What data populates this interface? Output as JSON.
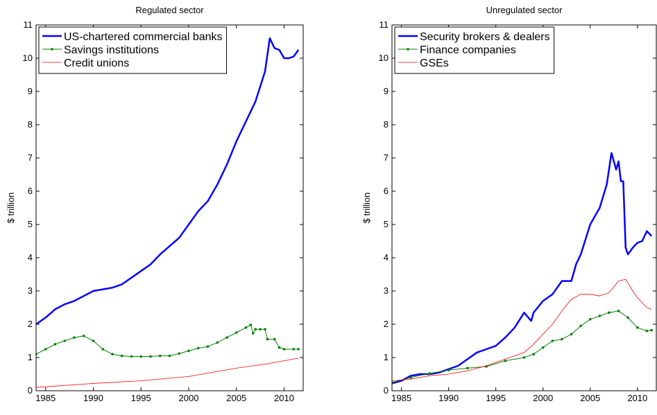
{
  "chart_data": [
    {
      "type": "line",
      "title": "Regulated sector",
      "ylabel": "$ trillion",
      "xlim": [
        1984,
        2012
      ],
      "ylim": [
        0,
        11
      ],
      "xticks": [
        1985,
        1990,
        1995,
        2000,
        2005,
        2010
      ],
      "yticks": [
        0,
        1,
        2,
        3,
        4,
        5,
        6,
        7,
        8,
        9,
        10,
        11
      ],
      "legend": "upper left",
      "series": [
        {
          "name": "US-chartered commercial banks",
          "color": "#0000ff",
          "linewidth": 2.5,
          "x": [
            1984,
            1985,
            1986,
            1987,
            1988,
            1989,
            1990,
            1991,
            1992,
            1993,
            1994,
            1995,
            1996,
            1997,
            1998,
            1999,
            2000,
            2001,
            2002,
            2003,
            2004,
            2005,
            2006,
            2007,
            2008,
            2008.5,
            2009,
            2009.5,
            2010,
            2010.5,
            2011,
            2011.5
          ],
          "values": [
            2.0,
            2.2,
            2.45,
            2.6,
            2.7,
            2.85,
            3.0,
            3.05,
            3.1,
            3.2,
            3.4,
            3.6,
            3.8,
            4.1,
            4.35,
            4.6,
            5.0,
            5.4,
            5.7,
            6.2,
            6.8,
            7.5,
            8.1,
            8.7,
            9.6,
            10.6,
            10.3,
            10.25,
            10.0,
            10.0,
            10.05,
            10.25
          ]
        },
        {
          "name": "Savings institutions",
          "color": "#008000",
          "linewidth": 1,
          "marker": ".",
          "x": [
            1984,
            1985,
            1986,
            1987,
            1988,
            1989,
            1990,
            1991,
            1992,
            1993,
            1994,
            1995,
            1996,
            1997,
            1998,
            1999,
            2000,
            2001,
            2002,
            2003,
            2004,
            2005,
            2006,
            2006.5,
            2006.75,
            2007,
            2007.5,
            2008,
            2008.25,
            2009,
            2009.5,
            2010,
            2011,
            2011.5
          ],
          "values": [
            1.1,
            1.25,
            1.4,
            1.5,
            1.6,
            1.65,
            1.5,
            1.25,
            1.1,
            1.05,
            1.03,
            1.03,
            1.03,
            1.05,
            1.05,
            1.12,
            1.2,
            1.28,
            1.33,
            1.45,
            1.6,
            1.75,
            1.9,
            1.98,
            1.73,
            1.85,
            1.85,
            1.85,
            1.55,
            1.55,
            1.3,
            1.25,
            1.25,
            1.25
          ]
        },
        {
          "name": "Credit unions",
          "color": "#ff0000",
          "linewidth": 0.8,
          "x": [
            1984,
            1990,
            1995,
            2000,
            2005,
            2008,
            2011.5
          ],
          "values": [
            0.1,
            0.22,
            0.3,
            0.43,
            0.68,
            0.8,
            0.98
          ]
        }
      ]
    },
    {
      "type": "line",
      "title": "Unregulated sector",
      "ylabel": "$ trillion",
      "xlim": [
        1984,
        2012
      ],
      "ylim": [
        0,
        11
      ],
      "xticks": [
        1985,
        1990,
        1995,
        2000,
        2005,
        2010
      ],
      "yticks": [
        0,
        1,
        2,
        3,
        4,
        5,
        6,
        7,
        8,
        9,
        10,
        11
      ],
      "legend": "upper left",
      "series": [
        {
          "name": "Security brokers & dealers",
          "color": "#0000ff",
          "linewidth": 2.5,
          "x": [
            1984,
            1985,
            1986,
            1987,
            1988,
            1989,
            1990,
            1991,
            1992,
            1993,
            1994,
            1995,
            1996,
            1997,
            1998,
            1998.75,
            1999,
            2000,
            2001,
            2002,
            2003,
            2003.5,
            2004,
            2005,
            2006,
            2006.75,
            2007.25,
            2007.75,
            2008,
            2008.25,
            2008.5,
            2008.75,
            2009,
            2009.5,
            2010,
            2010.5,
            2011,
            2011.5
          ],
          "values": [
            0.22,
            0.3,
            0.45,
            0.5,
            0.5,
            0.55,
            0.65,
            0.75,
            0.95,
            1.15,
            1.25,
            1.35,
            1.6,
            1.9,
            2.35,
            2.1,
            2.35,
            2.7,
            2.9,
            3.3,
            3.3,
            3.8,
            4.1,
            5.0,
            5.5,
            6.2,
            7.15,
            6.65,
            6.9,
            6.3,
            6.3,
            4.3,
            4.1,
            4.3,
            4.45,
            4.5,
            4.8,
            4.65
          ]
        },
        {
          "name": "Finance companies",
          "color": "#008000",
          "linewidth": 1,
          "marker": ".",
          "x": [
            1984,
            1986,
            1988,
            1990,
            1992,
            1994,
            1996,
            1998,
            1999,
            2000,
            2001,
            2002,
            2003,
            2004,
            2005,
            2006,
            2007,
            2008,
            2009,
            2010,
            2011,
            2011.5
          ],
          "values": [
            0.25,
            0.4,
            0.52,
            0.62,
            0.68,
            0.73,
            0.9,
            1.0,
            1.1,
            1.3,
            1.5,
            1.55,
            1.7,
            1.95,
            2.15,
            2.25,
            2.35,
            2.4,
            2.2,
            1.9,
            1.8,
            1.82
          ]
        },
        {
          "name": "GSEs",
          "color": "#ff0000",
          "linewidth": 0.8,
          "x": [
            1984,
            1986,
            1988,
            1990,
            1992,
            1994,
            1996,
            1998,
            1999,
            2000,
            2001,
            2002,
            2003,
            2004,
            2005,
            2006,
            2007,
            2008,
            2008.75,
            2009.5,
            2010,
            2011,
            2011.5
          ],
          "values": [
            0.3,
            0.35,
            0.45,
            0.5,
            0.6,
            0.75,
            0.95,
            1.15,
            1.4,
            1.7,
            2.0,
            2.4,
            2.75,
            2.9,
            2.9,
            2.85,
            2.95,
            3.3,
            3.35,
            3.0,
            2.8,
            2.5,
            2.45
          ]
        }
      ]
    }
  ]
}
